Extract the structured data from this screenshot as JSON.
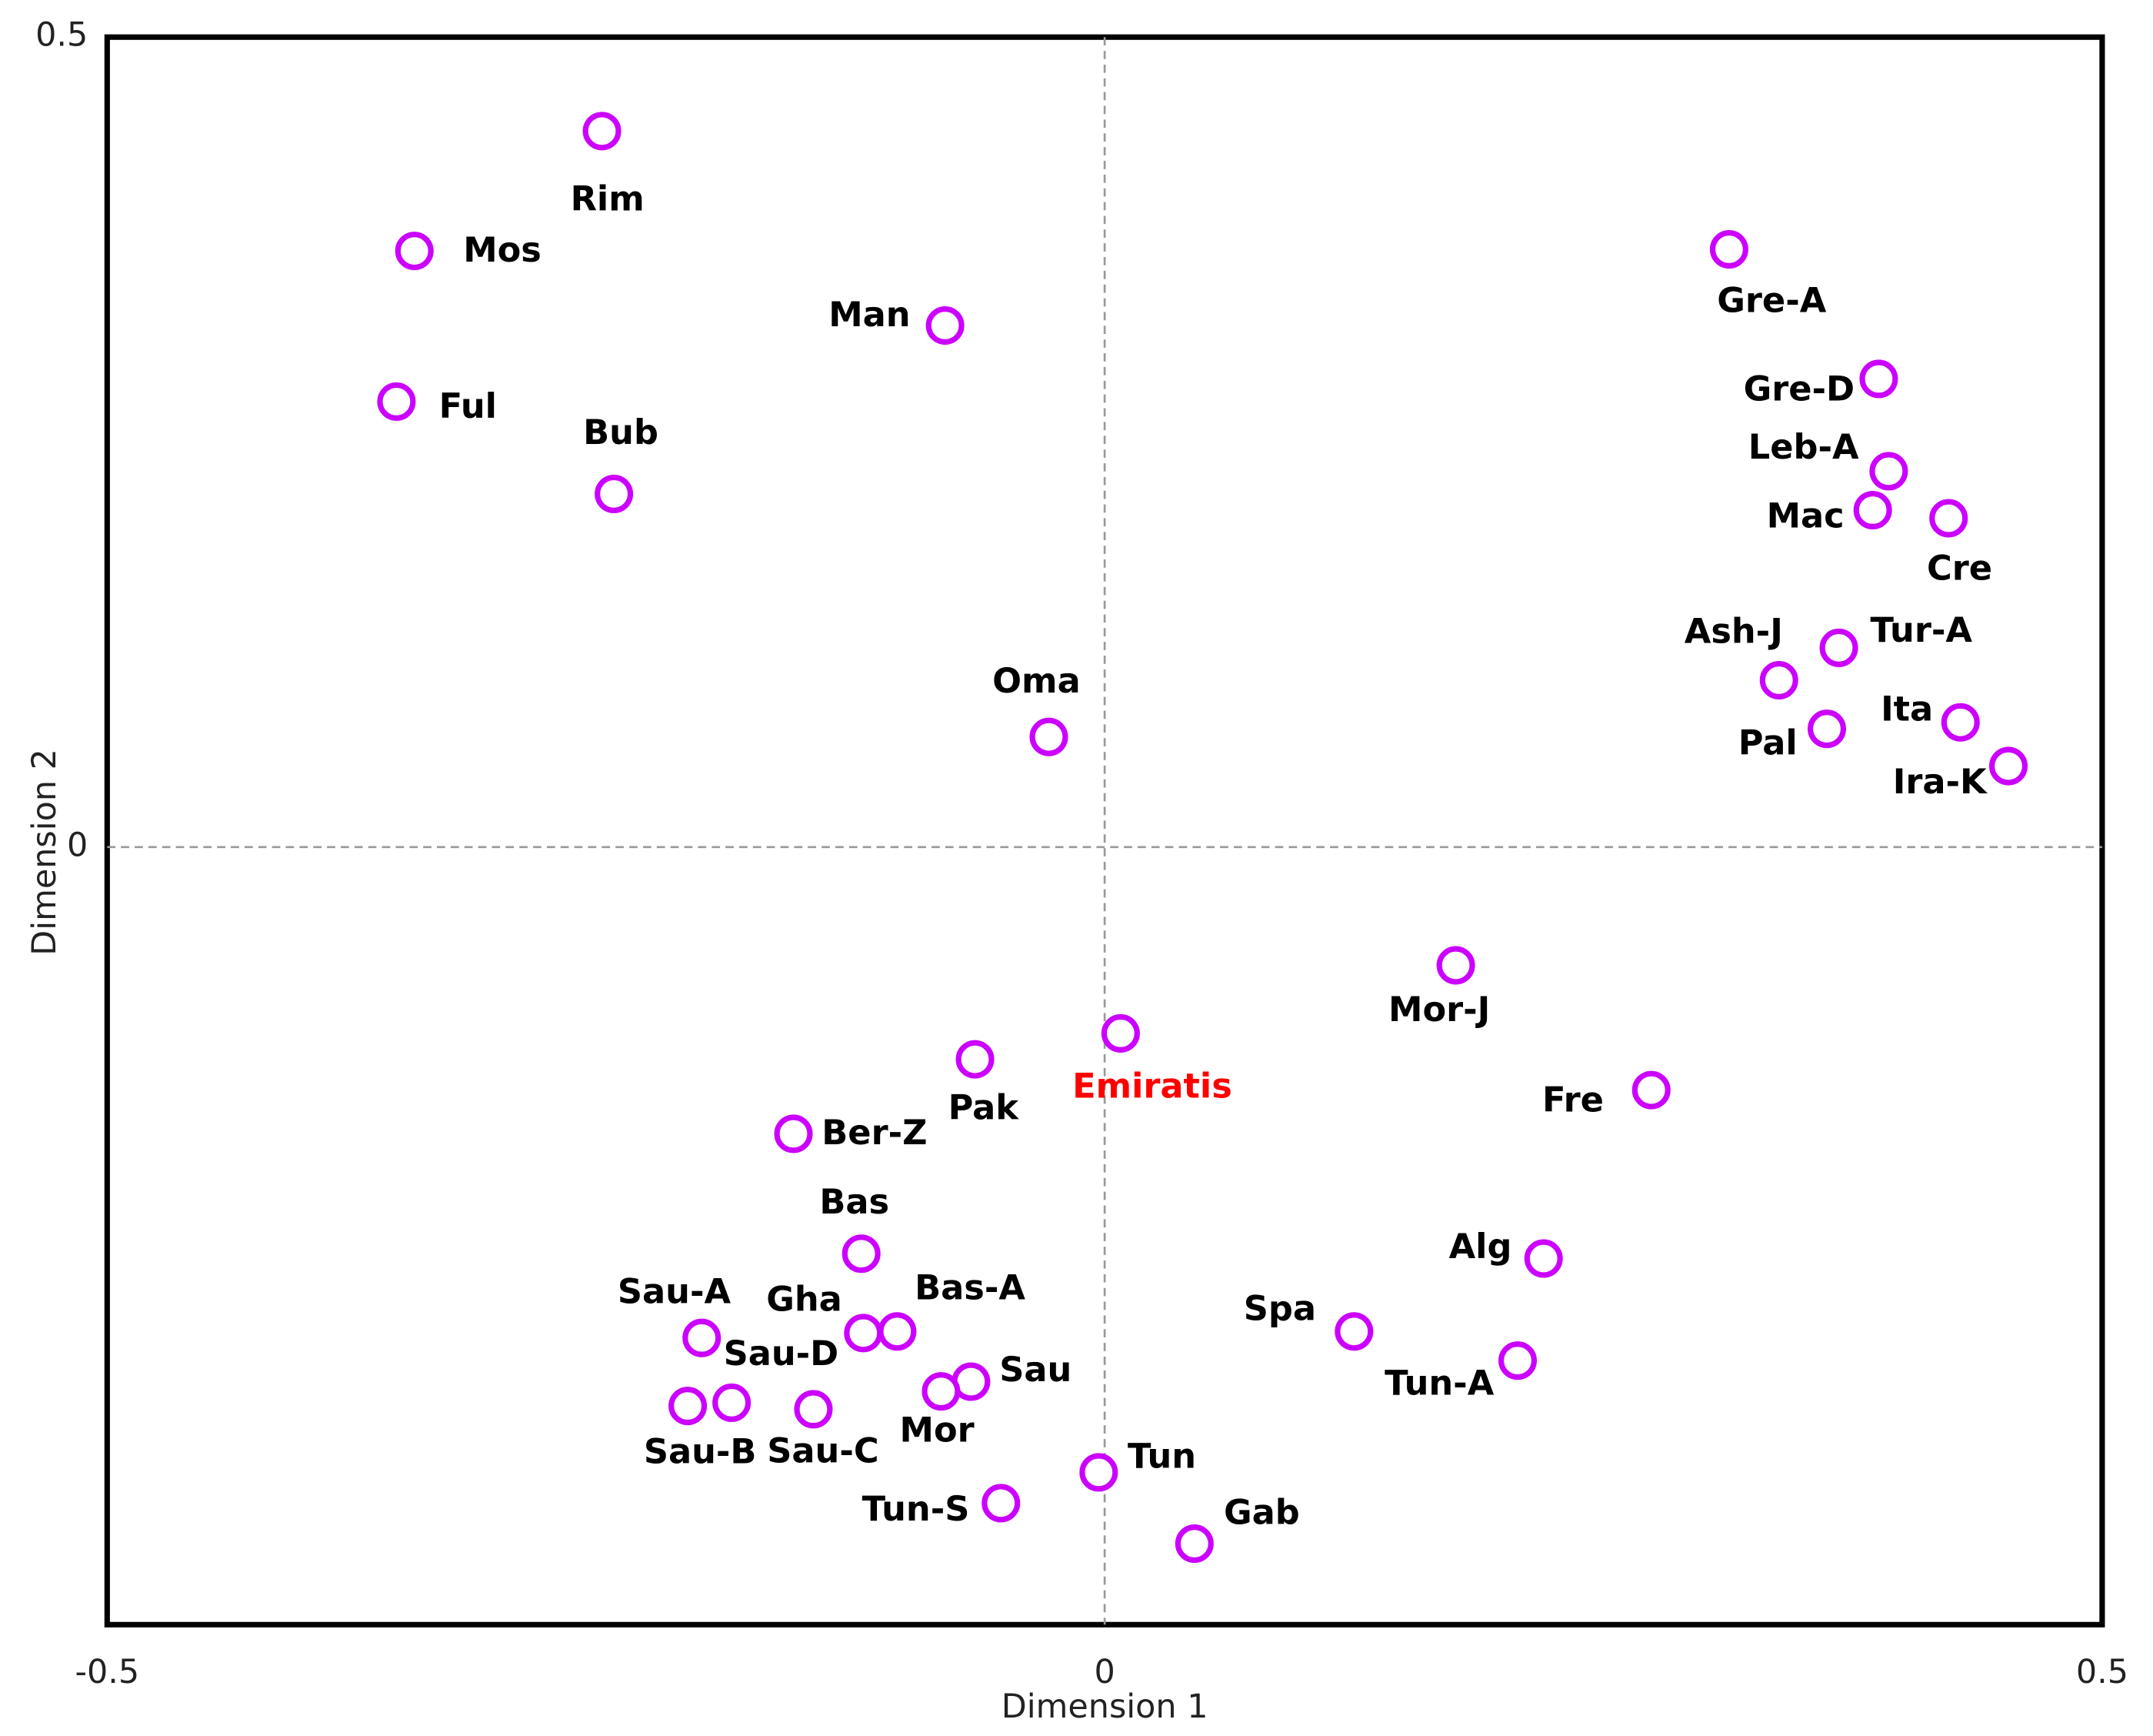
{
  "chart_data": {
    "type": "scatter",
    "x_label": "Dimension 1",
    "y_label": "Dimension 2",
    "xlim": [
      -0.5,
      0.5
    ],
    "xticks": [
      -0.5,
      0,
      0.5
    ],
    "ylim": [
      -0.48,
      0.5
    ],
    "yticks": [
      0,
      0.5
    ],
    "zero_lines": true,
    "color": "#cc00ff",
    "labels": [
      "Rim",
      "Mos",
      "Man",
      "Ful",
      "Bub",
      "Oma",
      "Gre-A",
      "Gre-D",
      "Leb-A",
      "Mac",
      "Cre",
      "Ash-J",
      "Tur-A",
      "Ita",
      "Pal",
      "Ira-K",
      "Mor-J",
      "Emiratis",
      "Pak",
      "Fre",
      "Ber-Z",
      "Bas",
      "Alg",
      "Sau-A",
      "Gha",
      "Bas-A",
      "Spa",
      "Sau-D",
      "Sau",
      "Tun-A",
      "Sau-B",
      "Sau-C",
      "Mor",
      "Tun",
      "Tun-S",
      "Gab"
    ],
    "label_colors": [
      "#000000",
      "#000000",
      "#000000",
      "#000000",
      "#000000",
      "#000000",
      "#000000",
      "#000000",
      "#000000",
      "#000000",
      "#000000",
      "#000000",
      "#000000",
      "#000000",
      "#000000",
      "#000000",
      "#000000",
      "#ff0000",
      "#000000",
      "#000000",
      "#000000",
      "#000000",
      "#000000",
      "#000000",
      "#000000",
      "#000000",
      "#000000",
      "#000000",
      "#000000",
      "#000000",
      "#000000",
      "#000000",
      "#000000",
      "#000000",
      "#000000",
      "#000000"
    ],
    "x": [
      -0.252,
      -0.346,
      -0.08,
      -0.355,
      -0.246,
      -0.028,
      0.313,
      0.388,
      0.393,
      0.385,
      0.423,
      0.338,
      0.368,
      0.429,
      0.362,
      0.453,
      0.176,
      0.008,
      -0.065,
      0.274,
      -0.156,
      -0.122,
      0.22,
      -0.202,
      -0.121,
      -0.104,
      0.125,
      -0.187,
      -0.067,
      0.207,
      -0.209,
      -0.146,
      -0.082,
      -0.003,
      -0.052,
      0.045
    ],
    "y": [
      0.442,
      0.368,
      0.322,
      0.275,
      0.218,
      0.068,
      0.369,
      0.289,
      0.232,
      0.208,
      0.203,
      0.103,
      0.123,
      0.077,
      0.073,
      0.05,
      -0.073,
      -0.115,
      -0.131,
      -0.15,
      -0.177,
      -0.251,
      -0.254,
      -0.303,
      -0.3,
      -0.299,
      -0.299,
      -0.343,
      -0.33,
      -0.317,
      -0.345,
      -0.347,
      -0.336,
      -0.386,
      -0.405,
      -0.43
    ]
  }
}
